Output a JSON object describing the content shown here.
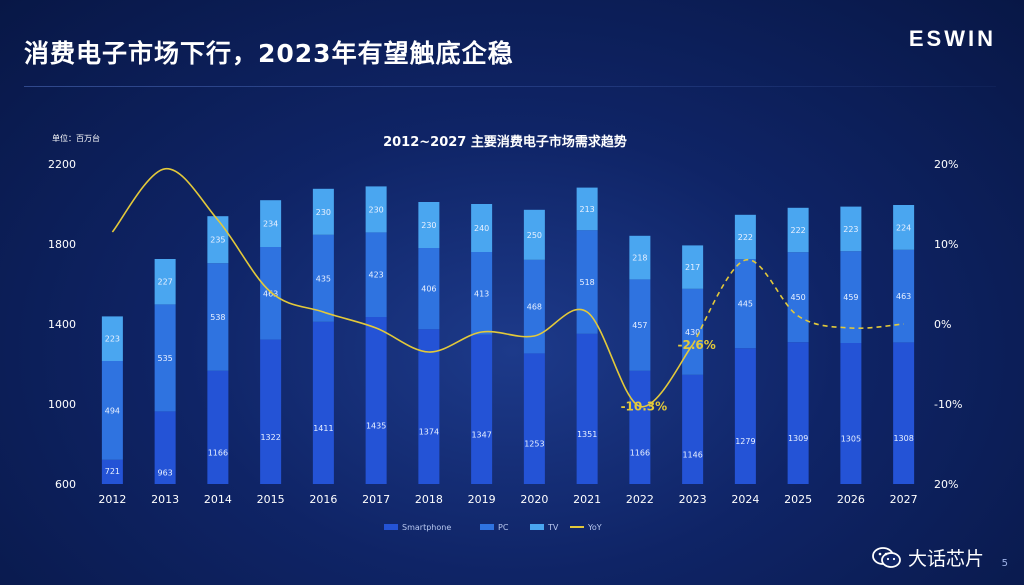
{
  "slide": {
    "title": "消费电子市场下行，2023年有望触底企稳",
    "brand": "ESWIN",
    "page_number": "5"
  },
  "watermark": {
    "text": "大话芯片",
    "icon": "wechat-icon"
  },
  "colors": {
    "smartphone": "#2453d6",
    "pc": "#2f73e0",
    "tv": "#4aa6f0",
    "yoy": "#e3c93a"
  },
  "chart_data": {
    "type": "bar",
    "stacked": true,
    "title": "2012~2027 主要消费电子市场需求趋势",
    "unit_label": "单位：百万台",
    "categories": [
      "2012",
      "2013",
      "2014",
      "2015",
      "2016",
      "2017",
      "2018",
      "2019",
      "2020",
      "2021",
      "2022",
      "2023",
      "2024",
      "2025",
      "2026",
      "2027"
    ],
    "series": [
      {
        "name": "Smartphone",
        "values": [
          721,
          963,
          1166,
          1322,
          1411,
          1435,
          1374,
          1347,
          1253,
          1351,
          1166,
          1146,
          1279,
          1309,
          1305,
          1308
        ]
      },
      {
        "name": "PC",
        "values": [
          494,
          535,
          538,
          463,
          435,
          423,
          406,
          413,
          468,
          518,
          457,
          430,
          445,
          450,
          459,
          463
        ]
      },
      {
        "name": "TV",
        "values": [
          223,
          227,
          235,
          234,
          230,
          230,
          230,
          240,
          250,
          213,
          218,
          217,
          222,
          222,
          223,
          224
        ]
      },
      {
        "name": "YoY",
        "axis": "right",
        "values": [
          11.5,
          19.4,
          13,
          4,
          1.5,
          -0.5,
          -3.5,
          -1,
          -1.5,
          1.5,
          -10.3,
          -2.6,
          8,
          1,
          -0.5,
          0
        ]
      }
    ],
    "projected_from": "2024",
    "annotations": [
      {
        "category": "2022",
        "text": "-10.3%"
      },
      {
        "category": "2023",
        "text": "-2.6%"
      }
    ],
    "ylim": [
      600,
      2200
    ],
    "yticks": [
      "600",
      "1000",
      "1400",
      "1800",
      "2200"
    ],
    "y2lim": [
      -20,
      20
    ],
    "y2ticks": [
      "20%",
      "10%",
      "0%",
      "-10%",
      "20%"
    ],
    "grid": false,
    "legend_position": "bottom"
  }
}
